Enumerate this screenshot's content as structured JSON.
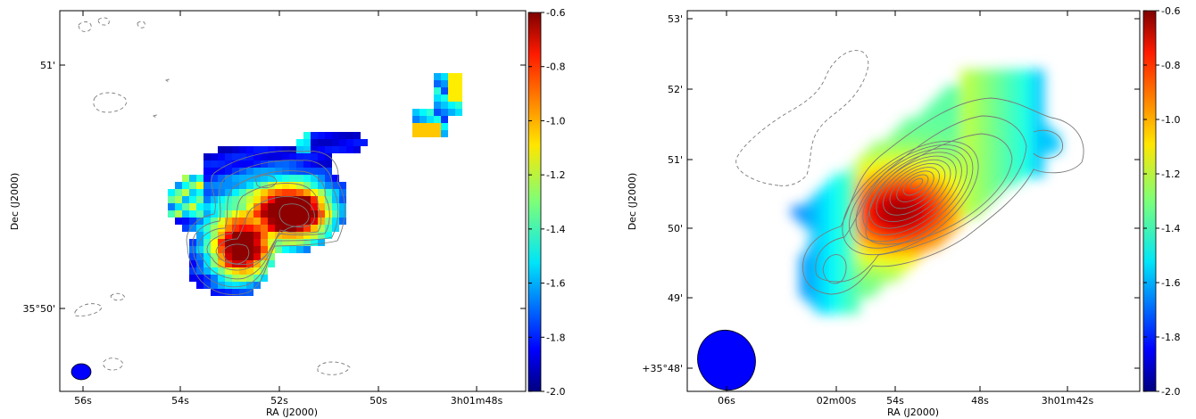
{
  "chart_data": [
    {
      "type": "heatmap",
      "xlabel": "RA (J2000)",
      "ylabel": "Dec (J2000)",
      "x_ticks": [
        "56s",
        "54s",
        "52s",
        "50s",
        "3h01m48s"
      ],
      "y_ticks": [
        "35°50'",
        "51'"
      ],
      "colorbar": {
        "min": -2.0,
        "max": -0.6,
        "ticks": [
          "-0.6",
          "-0.8",
          "-1.0",
          "-1.2",
          "-1.4",
          "-1.6",
          "-1.8",
          "-2.0"
        ]
      },
      "colormap": "jet",
      "beam_color": "#0000ff",
      "contour_color": "#808080"
    },
    {
      "type": "heatmap",
      "xlabel": "RA (J2000)",
      "ylabel": "Dec (J2000)",
      "x_ticks": [
        "06s",
        "02m00s",
        "54s",
        "48s",
        "3h01m42s"
      ],
      "y_ticks": [
        "+35°48'",
        "49'",
        "50'",
        "51'",
        "52'",
        "53'"
      ],
      "colorbar": {
        "min": -2.0,
        "max": -0.6,
        "ticks": [
          "-0.6",
          "-0.8",
          "-1.0",
          "-1.2",
          "-1.4",
          "-1.6",
          "-1.8",
          "-2.0"
        ]
      },
      "colormap": "jet",
      "beam_color": "#0000ff",
      "contour_color": "#808080"
    }
  ]
}
